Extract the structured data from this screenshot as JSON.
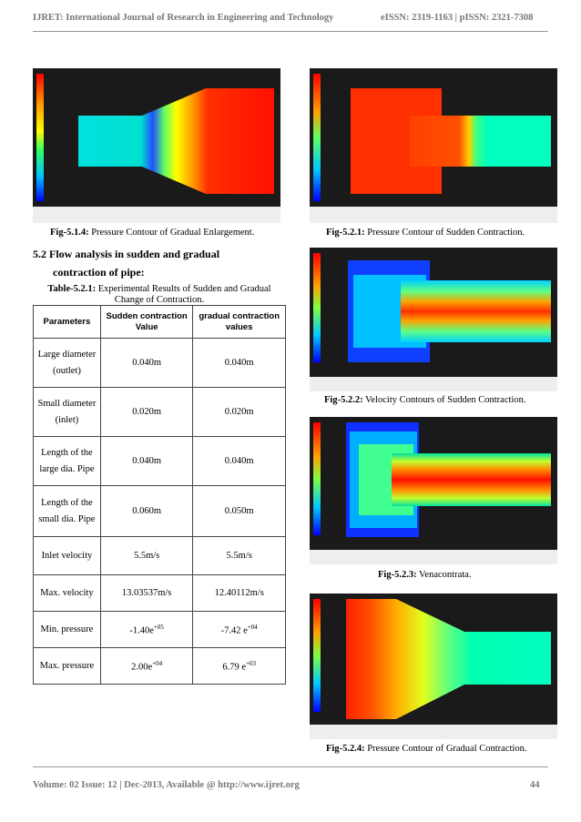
{
  "header": {
    "journal": "IJRET: International Journal of Research in Engineering and Technology",
    "issn": "eISSN: 2319-1163 | pISSN: 2321-7308"
  },
  "figures": {
    "fig514": {
      "label": "Fig-5.1.4:",
      "text": " Pressure Contour of Gradual Enlargement."
    },
    "fig521": {
      "label": "Fig-5.2.1:",
      "text": " Pressure Contour of Sudden Contraction."
    },
    "fig522": {
      "label": "Fig-5.2.2:",
      "text": " Velocity Contours of Sudden Contraction."
    },
    "fig523": {
      "label": "Fig-5.2.3:",
      "text": " Venacontrata."
    },
    "fig524": {
      "label": "Fig-5.2.4:",
      "text": " Pressure Contour of Gradual Contraction."
    }
  },
  "section": {
    "line1": "5.2 Flow analysis in sudden and gradual",
    "line2": "contraction of pipe:"
  },
  "table": {
    "label": "Table-5.2.1:",
    "title": " Experimental Results of Sudden and Gradual Change of Contraction.",
    "headers": [
      "Parameters",
      "Sudden contraction Value",
      "gradual contraction values"
    ],
    "rows": [
      [
        "Large diameter (outlet)",
        "0.040m",
        "0.040m"
      ],
      [
        "Small diameter (inlet)",
        "0.020m",
        "0.020m"
      ],
      [
        "Length of the large dia. Pipe",
        "0.040m",
        "0.040m"
      ],
      [
        "Length of the small dia. Pipe",
        "0.060m",
        "0.050m"
      ],
      [
        "Inlet velocity",
        "5.5m/s",
        "5.5m/s"
      ],
      [
        "Max. velocity",
        "13.03537m/s",
        "12.40112m/s"
      ],
      [
        "Min. pressure",
        "-1.40e",
        "-7.42 e"
      ],
      [
        "Max. pressure",
        "2.00e",
        "6.79 e"
      ]
    ],
    "sup_min": [
      "+05",
      "+04"
    ],
    "sup_max": [
      "+04",
      "+03"
    ]
  },
  "footer": {
    "left": "Volume: 02 Issue: 12 | Dec-2013, Available @ http://www.ijret.org",
    "page": "44"
  }
}
